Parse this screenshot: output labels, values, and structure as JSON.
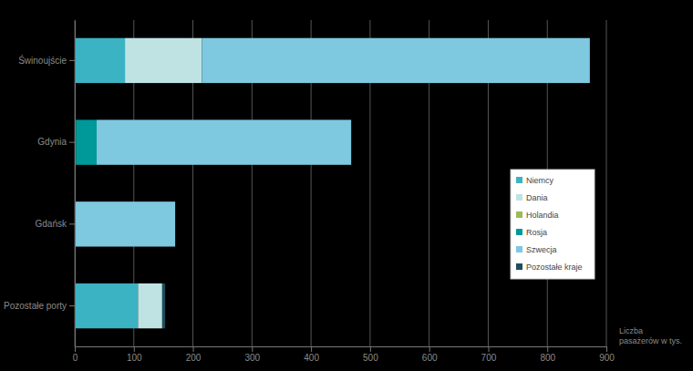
{
  "chart_data": {
    "type": "bar",
    "orientation": "horizontal",
    "stacked": true,
    "categories": [
      "Świnoujście",
      "Gdynia",
      "Gdańsk",
      "Pozostałe porty"
    ],
    "series": [
      {
        "name": "Niemcy",
        "color": "#3cb3c3",
        "values": [
          85,
          0,
          0,
          107
        ]
      },
      {
        "name": "Dania",
        "color": "#bfe3e3",
        "values": [
          130,
          0,
          0,
          41
        ]
      },
      {
        "name": "Holandia",
        "color": "#9bbb59",
        "values": [
          0,
          2,
          0,
          0
        ]
      },
      {
        "name": "Rosja",
        "color": "#00999a",
        "values": [
          0,
          35,
          0,
          0
        ]
      },
      {
        "name": "Szwecja",
        "color": "#7ec8e0",
        "values": [
          657,
          431,
          170,
          0
        ]
      },
      {
        "name": "Pozostałe kraje",
        "color": "#1f4e5a",
        "values": [
          0,
          0,
          0,
          5
        ]
      }
    ],
    "xlabel": "Liczba pasażerów w tys.",
    "xlim": [
      0,
      900
    ],
    "xticks": [
      0,
      100,
      200,
      300,
      400,
      500,
      600,
      700,
      800,
      900
    ],
    "grid": true,
    "legend": "right"
  }
}
